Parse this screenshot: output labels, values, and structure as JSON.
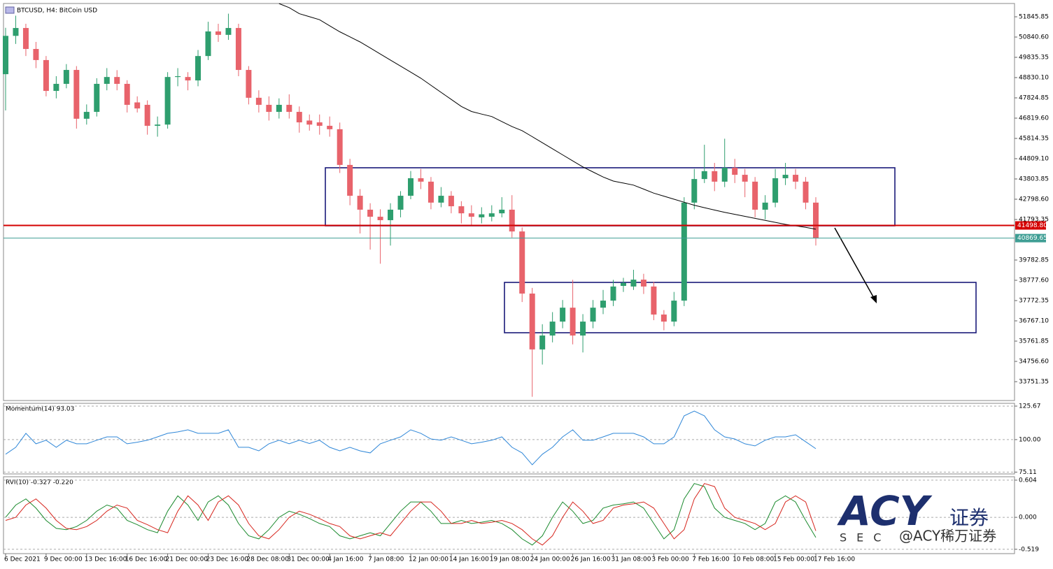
{
  "chart_data": [
    {
      "type": "candlestick",
      "title": "BTCUSD, H4:  BitCoin USD",
      "up_color": "#2e9e6e",
      "down_color": "#e8636b",
      "ohlc": [
        [
          49000,
          51300,
          47200,
          50900
        ],
        [
          50900,
          51900,
          50500,
          51290
        ],
        [
          51290,
          51500,
          49900,
          50250
        ],
        [
          50250,
          50600,
          49300,
          49700
        ],
        [
          49700,
          49900,
          47900,
          48170
        ],
        [
          48170,
          48900,
          47800,
          48520
        ],
        [
          48520,
          49500,
          48300,
          49210
        ],
        [
          49210,
          49400,
          46300,
          46790
        ],
        [
          46790,
          47500,
          46500,
          47130
        ],
        [
          47130,
          48800,
          46900,
          48520
        ],
        [
          48520,
          49300,
          48200,
          48860
        ],
        [
          48860,
          49200,
          48200,
          48520
        ],
        [
          48520,
          48700,
          47100,
          47480
        ],
        [
          47600,
          47900,
          47100,
          47300
        ],
        [
          47480,
          47700,
          46000,
          46440
        ],
        [
          46440,
          46900,
          45900,
          46500
        ],
        [
          46500,
          49100,
          46300,
          48860
        ],
        [
          48860,
          49300,
          48400,
          48900
        ],
        [
          48860,
          49100,
          48200,
          48690
        ],
        [
          48690,
          50200,
          48400,
          49900
        ],
        [
          49900,
          51600,
          49700,
          51120
        ],
        [
          51120,
          51500,
          50600,
          50950
        ],
        [
          50950,
          52000,
          50700,
          51290
        ],
        [
          51290,
          51500,
          48900,
          49210
        ],
        [
          49210,
          49400,
          47500,
          47830
        ],
        [
          47830,
          48200,
          47100,
          47480
        ],
        [
          47480,
          47900,
          46700,
          47130
        ],
        [
          47130,
          47800,
          46800,
          47480
        ],
        [
          47480,
          48000,
          46800,
          47130
        ],
        [
          47130,
          47400,
          46100,
          46610
        ],
        [
          46700,
          47000,
          46200,
          46500
        ],
        [
          46610,
          47000,
          46000,
          46440
        ],
        [
          46440,
          46900,
          45900,
          46270
        ],
        [
          46270,
          46600,
          44100,
          44500
        ],
        [
          44500,
          44800,
          42500,
          42970
        ],
        [
          42970,
          43300,
          41100,
          42280
        ],
        [
          42280,
          42600,
          40300,
          41930
        ],
        [
          41930,
          42300,
          39600,
          41760
        ],
        [
          41760,
          42600,
          40500,
          42280
        ],
        [
          42280,
          43200,
          41900,
          42970
        ],
        [
          42970,
          44200,
          42800,
          43840
        ],
        [
          43840,
          44300,
          43300,
          43670
        ],
        [
          43670,
          43900,
          42300,
          42630
        ],
        [
          42630,
          43400,
          42400,
          42970
        ],
        [
          42970,
          43200,
          42100,
          42450
        ],
        [
          42450,
          42700,
          41600,
          42100
        ],
        [
          42100,
          42500,
          41500,
          41930
        ],
        [
          41900,
          42400,
          41600,
          42050
        ],
        [
          41930,
          42500,
          41700,
          42100
        ],
        [
          42100,
          42900,
          41900,
          42280
        ],
        [
          42280,
          43000,
          40900,
          41200
        ],
        [
          41200,
          41400,
          37700,
          38120
        ],
        [
          38120,
          38400,
          33000,
          35350
        ],
        [
          35350,
          36600,
          34600,
          36040
        ],
        [
          36040,
          37200,
          35700,
          36730
        ],
        [
          36730,
          37800,
          36400,
          37420
        ],
        [
          37420,
          38800,
          35600,
          36040
        ],
        [
          36040,
          37100,
          35200,
          36730
        ],
        [
          36730,
          37800,
          36400,
          37420
        ],
        [
          37420,
          38300,
          37100,
          37770
        ],
        [
          37770,
          38800,
          37500,
          38470
        ],
        [
          38500,
          38900,
          38200,
          38650
        ],
        [
          38470,
          39300,
          38300,
          38810
        ],
        [
          38810,
          39100,
          38100,
          38470
        ],
        [
          38470,
          38700,
          36800,
          37080
        ],
        [
          37080,
          37300,
          36300,
          36730
        ],
        [
          36730,
          38200,
          36500,
          37770
        ],
        [
          37770,
          42900,
          37500,
          42630
        ],
        [
          42630,
          44300,
          42300,
          43800
        ],
        [
          43800,
          45500,
          43600,
          44190
        ],
        [
          44190,
          44600,
          43200,
          43670
        ],
        [
          43670,
          45800,
          43400,
          44360
        ],
        [
          44360,
          44800,
          43600,
          44010
        ],
        [
          44010,
          44300,
          42900,
          43670
        ],
        [
          43670,
          43900,
          41900,
          42280
        ],
        [
          42280,
          43000,
          41800,
          42630
        ],
        [
          42630,
          44300,
          42400,
          43840
        ],
        [
          43840,
          44600,
          43500,
          44010
        ],
        [
          44010,
          44300,
          43300,
          43670
        ],
        [
          43670,
          43900,
          42300,
          42630
        ],
        [
          42630,
          42900,
          40500,
          40870
        ]
      ],
      "ma": {
        "color": "#000000",
        "values": [
          null,
          null,
          null,
          null,
          null,
          null,
          null,
          null,
          null,
          null,
          null,
          null,
          null,
          null,
          null,
          null,
          null,
          null,
          null,
          null,
          null,
          null,
          null,
          null,
          null,
          null,
          null,
          52500,
          52300,
          52000,
          51850,
          51700,
          51400,
          51100,
          50850,
          50600,
          50300,
          50000,
          49700,
          49400,
          49100,
          48800,
          48450,
          48100,
          47750,
          47400,
          47150,
          47020,
          46900,
          46650,
          46400,
          46200,
          45900,
          45600,
          45300,
          45000,
          44700,
          44400,
          44150,
          43900,
          43700,
          43600,
          43500,
          43300,
          43100,
          42950,
          42800,
          42650,
          42500,
          42380,
          42260,
          42150,
          42050,
          41950,
          41850,
          41750,
          41650,
          41550,
          41480,
          41400,
          41310
        ]
      },
      "price_lines": [
        {
          "value": 41498.8,
          "label": "41498.80",
          "color": "#d40000"
        },
        {
          "value": 40869.65,
          "label": "40869.65",
          "color": "#3f9e94"
        }
      ],
      "ylim": [
        32815,
        52505
      ],
      "yticks": [
        51845.85,
        {
          "value": 50840.6,
          "label": "50840.60"
        },
        49835.35,
        {
          "value": 48830.1,
          "label": "48830.10"
        },
        47824.85,
        {
          "value": 46819.6,
          "label": "46819.60"
        },
        45814.35,
        {
          "value": 44809.1,
          "label": "44809.10"
        },
        43803.85,
        {
          "value": 42798.6,
          "label": "42798.60"
        },
        41793.35,
        39782.85,
        {
          "value": 38777.6,
          "label": "38777.60"
        },
        37772.35,
        {
          "value": 36767.1,
          "label": "36767.10"
        },
        35761.85,
        {
          "value": 34756.6,
          "label": "34756.60"
        },
        33751.35
      ]
    },
    {
      "type": "line",
      "title": "Momentum(14) 93.03",
      "color": "#2f87d8",
      "values": [
        88.8,
        94.1,
        104.8,
        96.8,
        99.5,
        94.1,
        99.5,
        96.8,
        96.8,
        99.5,
        102.1,
        102.1,
        96.8,
        98,
        99.5,
        102.1,
        104.8,
        105.9,
        107.5,
        104.8,
        104.8,
        104.8,
        107.5,
        94.1,
        94.1,
        91.4,
        96.8,
        99.5,
        96.8,
        99.5,
        97,
        99.5,
        94.1,
        91.4,
        94.1,
        91.4,
        89.8,
        96.8,
        99.5,
        102.1,
        107.5,
        104.8,
        100.5,
        99.5,
        102.1,
        99.5,
        96.8,
        98,
        99.5,
        102.1,
        94.1,
        89.8,
        80.7,
        88.8,
        94.1,
        102.1,
        107.5,
        99.5,
        99.5,
        102.1,
        104.8,
        104.8,
        104.8,
        102.1,
        96.8,
        96.8,
        102.1,
        118.2,
        121.9,
        118.2,
        107.5,
        102.1,
        100.5,
        96.8,
        95.2,
        99.5,
        102.1,
        102.1,
        103.7,
        98.4,
        93.03
      ],
      "ylim": [
        73.7,
        127.8
      ],
      "yticks": [
        125.67,
        {
          "value": 100,
          "label": "100.00"
        },
        75.11
      ]
    },
    {
      "type": "line",
      "title": "RVI(10) -0.327 -0.220",
      "series": [
        {
          "color": "#1b8a2e",
          "values": [
            0.0,
            0.2,
            0.3,
            0.15,
            -0.05,
            -0.18,
            -0.2,
            -0.15,
            -0.05,
            0.1,
            0.2,
            0.15,
            -0.05,
            -0.12,
            -0.2,
            -0.25,
            0.1,
            0.35,
            0.2,
            -0.05,
            0.25,
            0.35,
            0.2,
            -0.1,
            -0.3,
            -0.35,
            -0.2,
            0.0,
            0.1,
            0.05,
            -0.02,
            -0.1,
            -0.15,
            -0.3,
            -0.35,
            -0.3,
            -0.25,
            -0.3,
            -0.1,
            0.1,
            0.25,
            0.25,
            0.1,
            -0.1,
            -0.1,
            -0.05,
            -0.1,
            -0.08,
            -0.05,
            -0.1,
            -0.2,
            -0.35,
            -0.45,
            -0.3,
            0.0,
            0.25,
            0.1,
            -0.1,
            -0.05,
            0.15,
            0.2,
            0.22,
            0.25,
            0.15,
            -0.1,
            -0.35,
            -0.2,
            0.3,
            0.55,
            0.5,
            0.15,
            0.0,
            -0.05,
            -0.1,
            -0.2,
            -0.1,
            0.25,
            0.35,
            0.25,
            -0.05,
            -0.327
          ]
        },
        {
          "color": "#d7261e",
          "values": [
            -0.05,
            0.0,
            0.2,
            0.3,
            0.15,
            -0.05,
            -0.18,
            -0.2,
            -0.15,
            -0.05,
            0.1,
            0.2,
            0.15,
            -0.05,
            -0.12,
            -0.2,
            -0.25,
            0.1,
            0.35,
            0.2,
            -0.05,
            0.25,
            0.35,
            0.2,
            -0.1,
            -0.3,
            -0.35,
            -0.2,
            0.0,
            0.1,
            0.05,
            -0.02,
            -0.1,
            -0.15,
            -0.3,
            -0.35,
            -0.3,
            -0.25,
            -0.3,
            -0.1,
            0.1,
            0.25,
            0.25,
            0.1,
            -0.1,
            -0.1,
            -0.05,
            -0.1,
            -0.08,
            -0.05,
            -0.1,
            -0.2,
            -0.35,
            -0.45,
            -0.3,
            0.0,
            0.25,
            0.1,
            -0.1,
            -0.05,
            0.15,
            0.2,
            0.22,
            0.25,
            0.15,
            -0.1,
            -0.35,
            -0.2,
            0.3,
            0.55,
            0.5,
            0.15,
            0.0,
            -0.05,
            -0.1,
            -0.2,
            -0.1,
            0.25,
            0.35,
            0.25,
            -0.22
          ]
        }
      ],
      "ylim": [
        -0.59,
        0.66
      ],
      "yticks": [
        0.604,
        {
          "value": 0,
          "label": "0.000"
        },
        -0.519
      ],
      "categories": [
        "6 Dec 2021",
        null,
        null,
        null,
        "9 Dec 00:00",
        null,
        null,
        null,
        "13 Dec 16:00",
        null,
        null,
        null,
        "16 Dec 16:00",
        null,
        null,
        null,
        "21 Dec 00:00",
        null,
        null,
        null,
        "23 Dec 16:00",
        null,
        null,
        null,
        "28 Dec 08:00",
        null,
        null,
        null,
        "31 Dec 00:00",
        null,
        null,
        null,
        "4 Jan 16:00",
        null,
        null,
        null,
        "7 Jan 08:00",
        null,
        null,
        null,
        "12 Jan 00:00",
        null,
        null,
        null,
        "14 Jan 16:00",
        null,
        null,
        null,
        "19 Jan 08:00",
        null,
        null,
        null,
        "24 Jan 00:00",
        null,
        null,
        null,
        "26 Jan 16:00",
        null,
        null,
        null,
        "31 Jan 08:00",
        null,
        null,
        null,
        "3 Feb 00:00",
        null,
        null,
        null,
        "7 Feb 16:00",
        null,
        null,
        null,
        "10 Feb 08:00",
        null,
        null,
        null,
        "15 Feb 00:00",
        null,
        null,
        null,
        "17 Feb 16:00"
      ]
    }
  ],
  "watermark": {
    "logo": "ACY",
    "name": "证券",
    "sub": "SEC",
    "handle": "@ACY稀万证券"
  }
}
